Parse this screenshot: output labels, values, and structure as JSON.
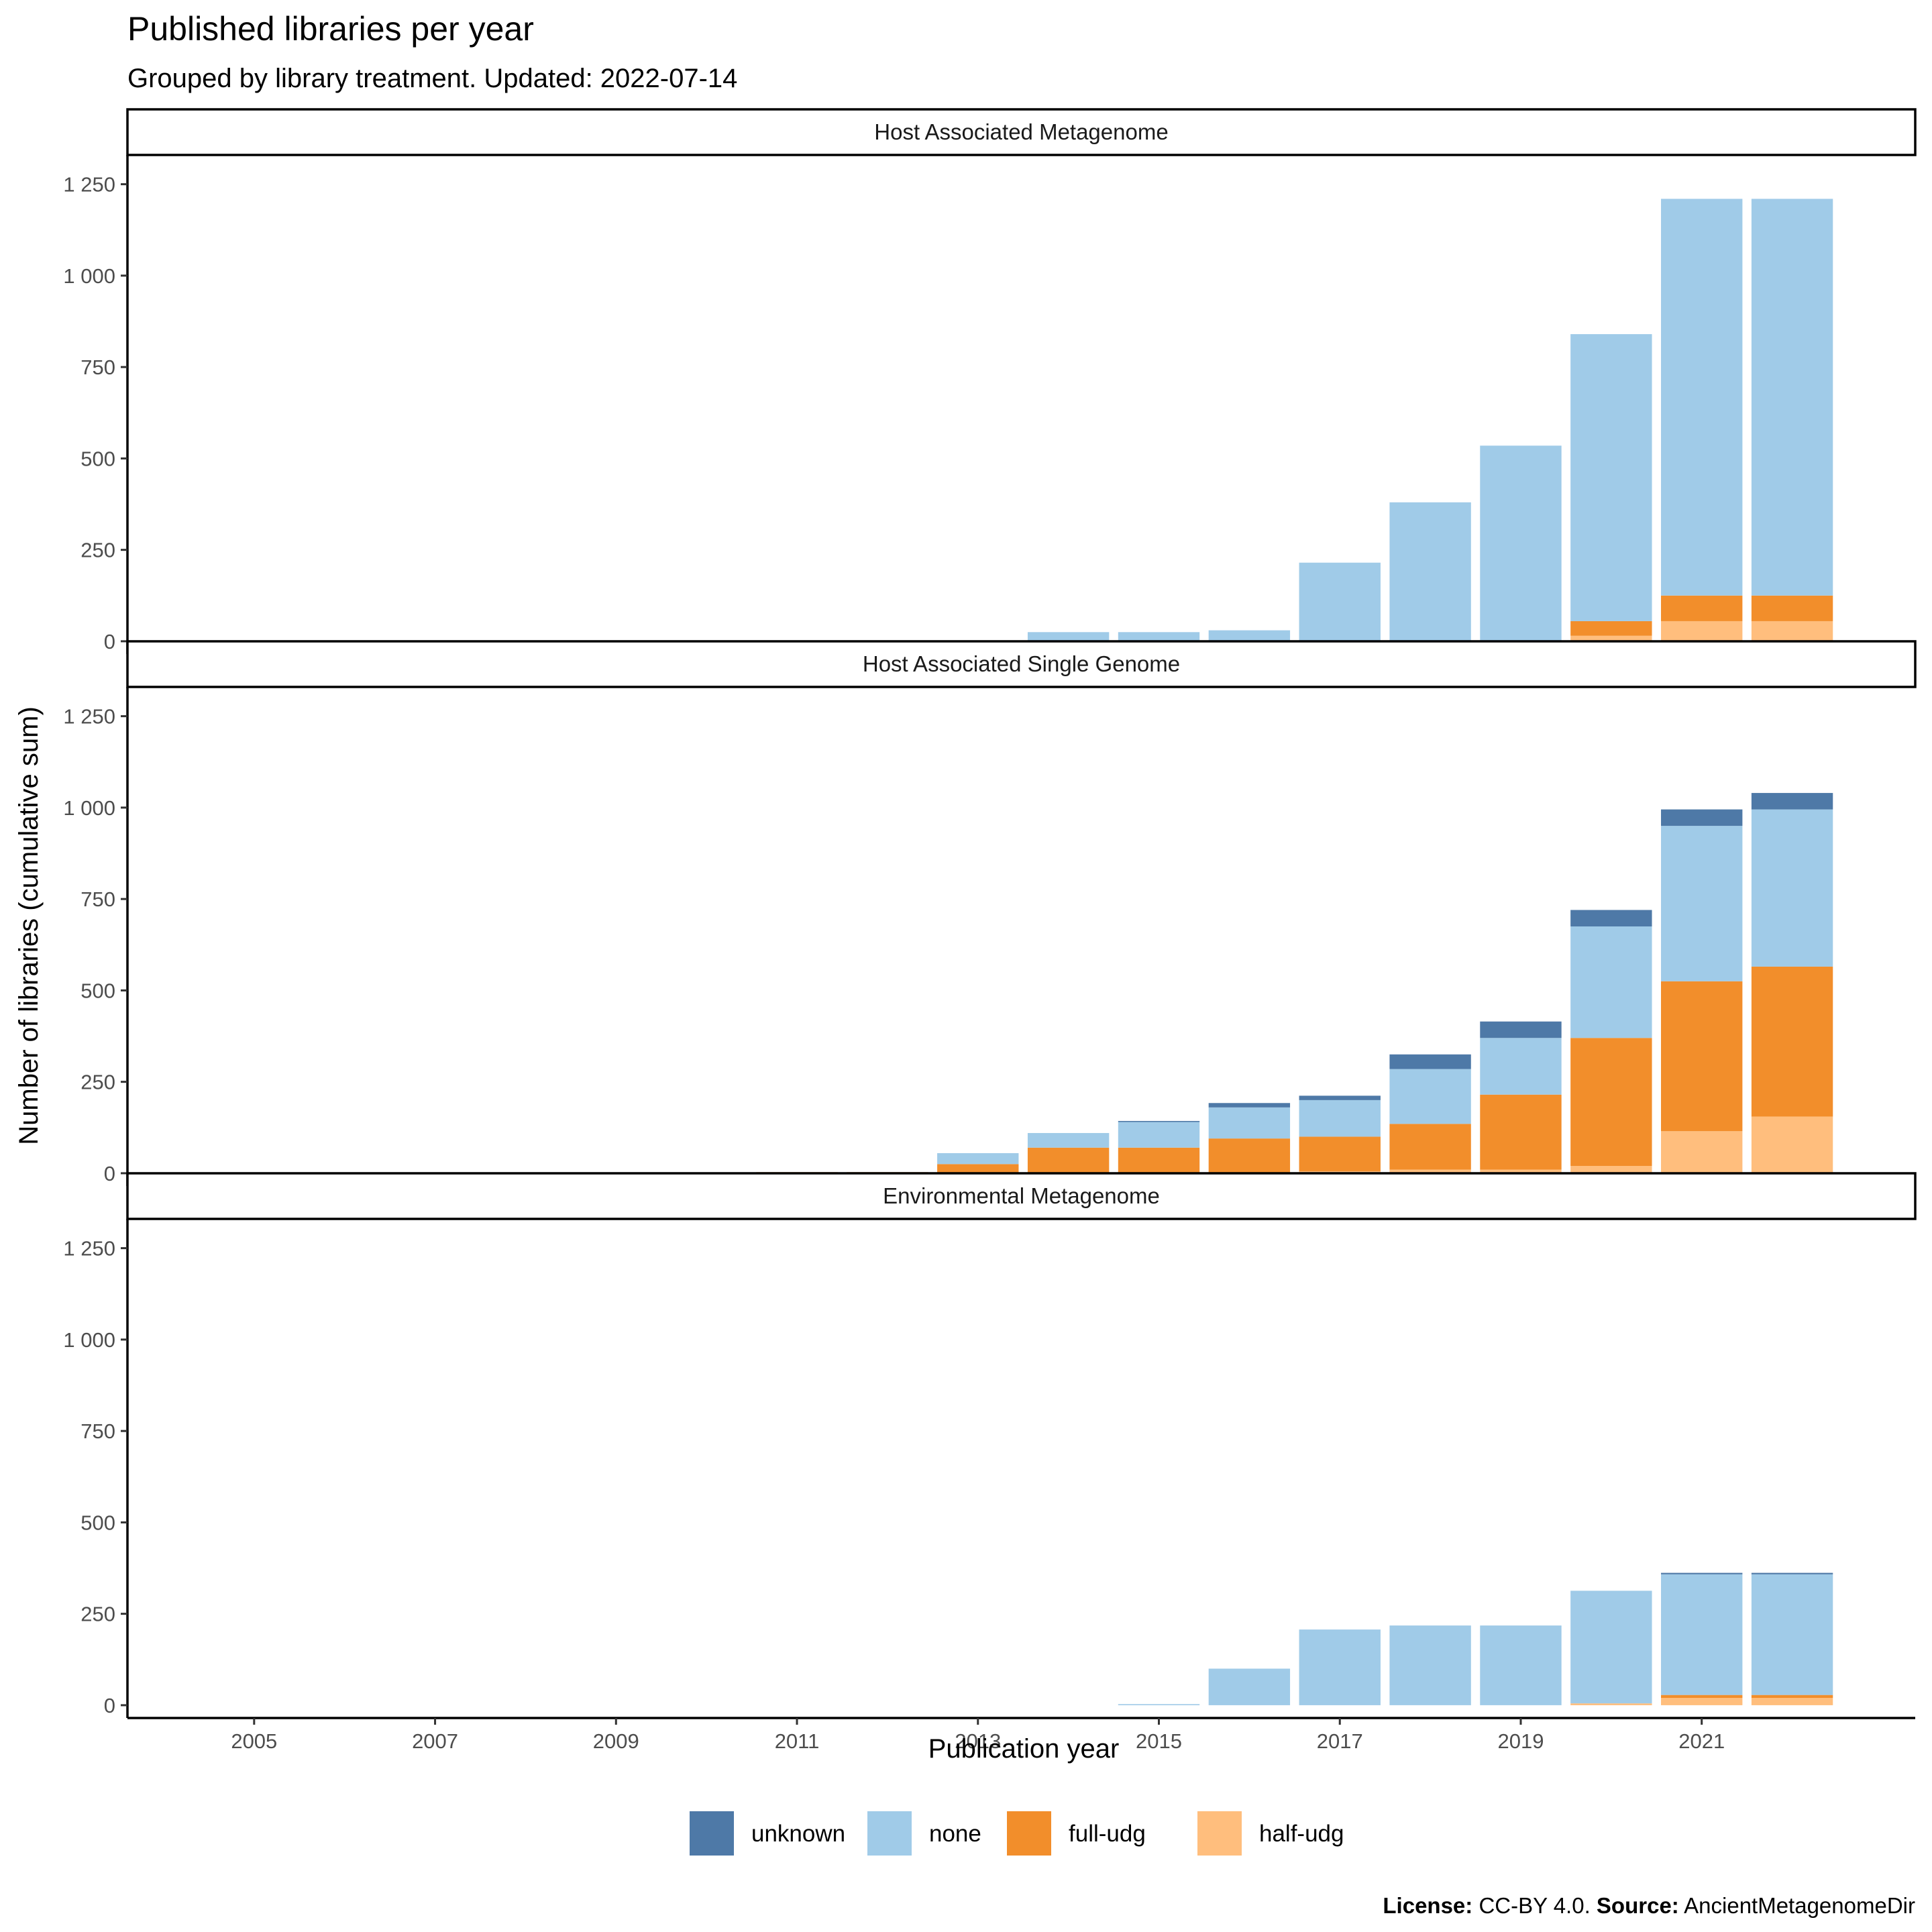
{
  "title": "Published libraries per year",
  "subtitle": "Grouped by library treatment. Updated: 2022-07-14",
  "caption": {
    "license_label": "License:",
    "license_value": " CC-BY 4.0. ",
    "source_label": "Source:",
    "source_value": " AncientMetagenomeDir"
  },
  "chart_data": {
    "type": "bar",
    "stacked": true,
    "xlabel": "Publication year",
    "ylabel": "Number of  libraries  (cumulative sum)",
    "x": [
      2005,
      2006,
      2007,
      2008,
      2009,
      2010,
      2011,
      2012,
      2013,
      2014,
      2015,
      2016,
      2017,
      2018,
      2019,
      2020,
      2021,
      2022
    ],
    "x_tick_labels": [
      "2005",
      "2007",
      "2009",
      "2011",
      "2013",
      "2015",
      "2017",
      "2019",
      "2021"
    ],
    "x_tick_values": [
      2005,
      2007,
      2009,
      2011,
      2013,
      2015,
      2017,
      2019,
      2021
    ],
    "ylim": [
      0,
      1250
    ],
    "y_tick_values": [
      0,
      250,
      500,
      750,
      1000,
      1250
    ],
    "y_tick_labels": [
      "0",
      "250",
      "500",
      "750",
      "1 000",
      "1 250"
    ],
    "legend_position": "bottom",
    "series_order": [
      "half-udg",
      "full-udg",
      "none",
      "unknown"
    ],
    "legend": [
      {
        "name": "unknown",
        "color": "#4e79a7"
      },
      {
        "name": "none",
        "color": "#a0cbe8"
      },
      {
        "name": "full-udg",
        "color": "#f28e2b"
      },
      {
        "name": "half-udg",
        "color": "#ffbe7d"
      }
    ],
    "panels": [
      {
        "title": "Host Associated Metagenome",
        "series": {
          "half-udg": [
            0,
            0,
            0,
            0,
            0,
            0,
            0,
            0,
            0,
            0,
            0,
            0,
            0,
            0,
            0,
            15,
            55,
            55
          ],
          "full-udg": [
            0,
            0,
            0,
            0,
            0,
            0,
            0,
            0,
            0,
            0,
            0,
            0,
            0,
            0,
            0,
            40,
            70,
            70
          ],
          "none": [
            0,
            0,
            0,
            0,
            0,
            0,
            0,
            0,
            0,
            25,
            25,
            30,
            215,
            380,
            535,
            785,
            1085,
            1085
          ],
          "unknown": [
            0,
            0,
            0,
            0,
            0,
            0,
            0,
            0,
            0,
            0,
            0,
            0,
            0,
            0,
            0,
            0,
            0,
            0
          ]
        }
      },
      {
        "title": "Host Associated Single Genome",
        "series": {
          "half-udg": [
            0,
            0,
            0,
            0,
            0,
            0,
            0,
            0,
            0,
            0,
            0,
            0,
            5,
            10,
            10,
            20,
            115,
            155
          ],
          "full-udg": [
            0,
            0,
            0,
            0,
            0,
            0,
            3,
            3,
            25,
            70,
            70,
            95,
            95,
            125,
            205,
            350,
            410,
            410
          ],
          "none": [
            2,
            2,
            2,
            2,
            2,
            2,
            0,
            0,
            30,
            40,
            70,
            85,
            100,
            150,
            155,
            305,
            425,
            430
          ],
          "unknown": [
            0,
            0,
            0,
            0,
            0,
            0,
            0,
            0,
            0,
            0,
            3,
            12,
            12,
            40,
            45,
            45,
            45,
            45
          ]
        }
      },
      {
        "title": "Environmental Metagenome",
        "series": {
          "half-udg": [
            0,
            0,
            0,
            0,
            0,
            0,
            0,
            0,
            0,
            0,
            0,
            0,
            0,
            0,
            0,
            5,
            20,
            20
          ],
          "full-udg": [
            0,
            0,
            0,
            0,
            0,
            0,
            0,
            0,
            0,
            0,
            0,
            0,
            0,
            0,
            0,
            0,
            8,
            8
          ],
          "none": [
            0,
            0,
            0,
            0,
            0,
            0,
            0,
            0,
            0,
            0,
            3,
            100,
            207,
            218,
            218,
            308,
            330,
            330
          ],
          "unknown": [
            0,
            0,
            0,
            0,
            0,
            0,
            0,
            0,
            0,
            0,
            0,
            0,
            0,
            0,
            0,
            0,
            4,
            4
          ]
        }
      }
    ]
  }
}
